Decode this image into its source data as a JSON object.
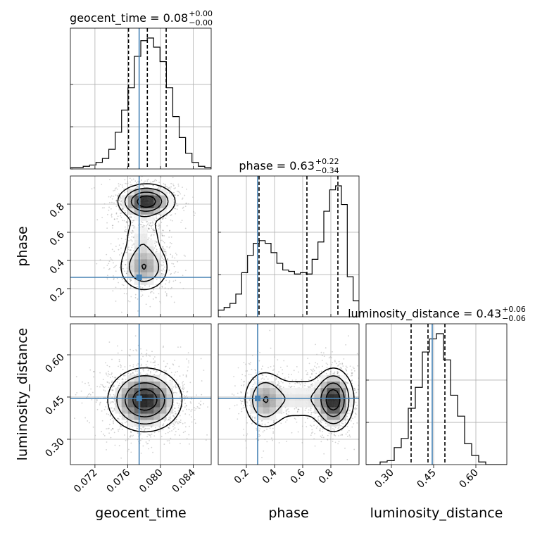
{
  "chart_data": {
    "type": "corner",
    "parameters": [
      "geocent_time",
      "phase",
      "luminosity_distance"
    ],
    "titles": [
      {
        "param": "geocent_time",
        "text": "geocent_time = 0.08",
        "plus": "+0.00",
        "minus": "−0.00"
      },
      {
        "param": "phase",
        "text": "phase = 0.63",
        "plus": "+0.22",
        "minus": "−0.34"
      },
      {
        "param": "luminosity_distance",
        "text": "luminosity_distance = 0.43",
        "plus": "+0.06",
        "minus": "−0.06"
      }
    ],
    "truths": {
      "geocent_time": 0.0774,
      "phase": 0.28,
      "luminosity_distance": 0.445
    },
    "ranges": {
      "geocent_time": [
        0.069,
        0.0862
      ],
      "phase": [
        0.0,
        1.0
      ],
      "luminosity_distance": [
        0.21,
        0.71
      ]
    },
    "ticks": {
      "geocent_time": [
        "0.072",
        "0.076",
        "0.080",
        "0.084"
      ],
      "phase": [
        "0.2",
        "0.4",
        "0.6",
        "0.8"
      ],
      "luminosity_distance": [
        "0.30",
        "0.45",
        "0.60"
      ]
    },
    "quantiles": {
      "geocent_time": [
        0.0761,
        0.0784,
        0.0807
      ],
      "phase": [
        0.29,
        0.63,
        0.85
      ],
      "luminosity_distance": [
        0.37,
        0.43,
        0.49
      ]
    },
    "histograms": {
      "geocent_time": {
        "edges_range": [
          0.069,
          0.0862
        ],
        "counts": [
          0.01,
          0.01,
          0.02,
          0.03,
          0.05,
          0.08,
          0.15,
          0.28,
          0.45,
          0.62,
          0.86,
          0.98,
          1.0,
          0.93,
          0.82,
          0.62,
          0.4,
          0.24,
          0.12,
          0.05,
          0.02,
          0.01
        ]
      },
      "phase": {
        "edges_range": [
          0.0,
          1.0
        ],
        "counts": [
          0.05,
          0.07,
          0.1,
          0.17,
          0.33,
          0.46,
          0.55,
          0.57,
          0.55,
          0.48,
          0.4,
          0.35,
          0.34,
          0.32,
          0.33,
          0.32,
          0.43,
          0.56,
          0.79,
          0.95,
          0.98,
          0.84,
          0.3,
          0.12
        ]
      },
      "luminosity_distance": {
        "edges_range": [
          0.21,
          0.71
        ],
        "counts": [
          0.0,
          0.0,
          0.02,
          0.03,
          0.13,
          0.2,
          0.43,
          0.59,
          0.86,
          0.96,
          1.0,
          0.8,
          0.53,
          0.37,
          0.16,
          0.07,
          0.02,
          0.0,
          0.0,
          0.0
        ]
      }
    },
    "density_2d": [
      {
        "x": "geocent_time",
        "y": "phase",
        "modes": [
          {
            "x": 0.0783,
            "y": 0.82,
            "sx": 0.0017,
            "sy": 0.06,
            "w": 1.0
          },
          {
            "x": 0.078,
            "y": 0.35,
            "sx": 0.0016,
            "sy": 0.09,
            "w": 0.55
          },
          {
            "x": 0.0778,
            "y": 0.58,
            "sx": 0.0014,
            "sy": 0.1,
            "w": 0.25
          }
        ]
      },
      {
        "x": "geocent_time",
        "y": "luminosity_distance",
        "modes": [
          {
            "x": 0.0781,
            "y": 0.44,
            "sx": 0.0022,
            "sy": 0.055,
            "w": 1.0
          }
        ]
      },
      {
        "x": "phase",
        "y": "luminosity_distance",
        "modes": [
          {
            "x": 0.82,
            "y": 0.44,
            "sx": 0.07,
            "sy": 0.055,
            "w": 1.0
          },
          {
            "x": 0.33,
            "y": 0.44,
            "sx": 0.08,
            "sy": 0.055,
            "w": 0.55
          },
          {
            "x": 0.58,
            "y": 0.445,
            "sx": 0.12,
            "sy": 0.045,
            "w": 0.3
          }
        ]
      }
    ]
  }
}
